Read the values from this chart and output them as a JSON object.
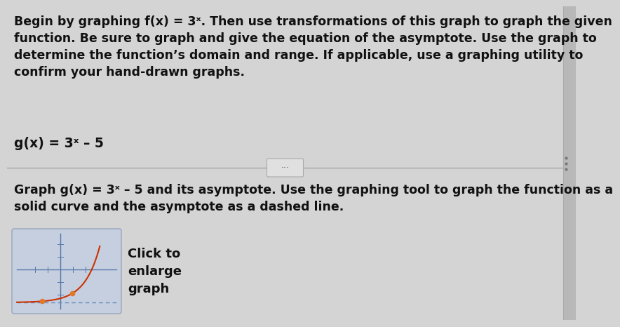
{
  "background_color": "#d4d4d4",
  "text_color": "#111111",
  "paragraph1_line1": "Begin by graphing f(x) = 3",
  "paragraph1_line1_super": "x",
  "paragraph1_rest": ". Then use transformations of this graph to graph the given\nfunction. Be sure to graph and give the equation of the asymptote. Use the graph to\ndetermine the function’s domain and range. If applicable, use a graphing utility to\nconfirm your hand-drawn graphs.",
  "function_label_base": "g(x) = 3",
  "function_label_super": "x",
  "function_label_end": " – 5",
  "paragraph2_line1": "Graph g(x) = 3",
  "paragraph2_line1_super": "x",
  "paragraph2_line1_end": " – 5 and its asymptote. Use the graphing tool to graph the function as a",
  "paragraph2_line2": "solid curve and the asymptote as a dashed line.",
  "click_text": "Click to\nenlarge\ngraph",
  "divider_color": "#999999",
  "thumbnail_bg": "#c5cfe0",
  "thumbnail_border": "#9aa5bc",
  "curve_color": "#cc3300",
  "axis_color": "#5577aa",
  "dashed_color": "#6688bb",
  "dot_color": "#e07828",
  "font_size_body": 12.5,
  "font_size_function": 13.5,
  "font_size_click": 13,
  "right_bar_color": "#c0c0c0",
  "right_bar_width": 18
}
